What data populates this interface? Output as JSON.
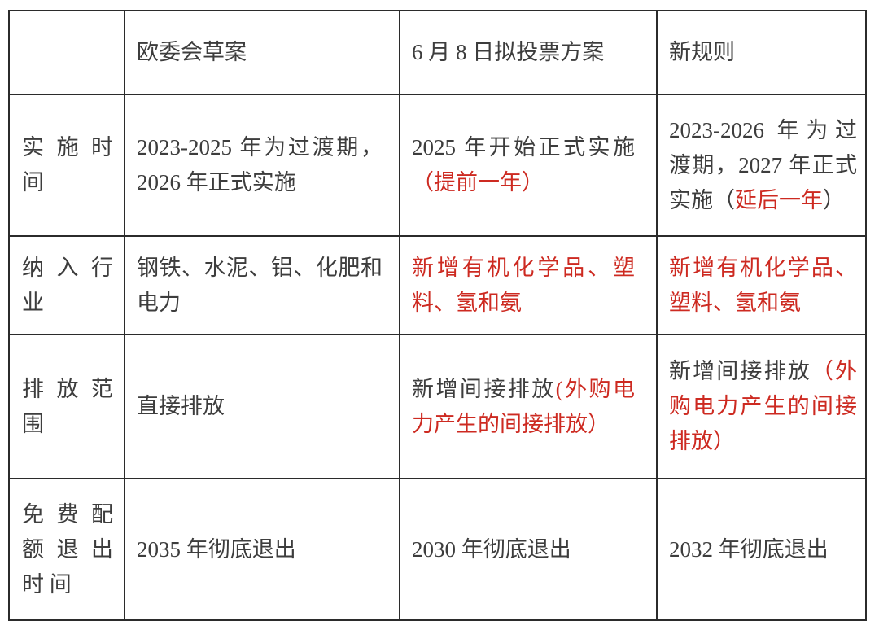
{
  "colors": {
    "text": "#3d3d3d",
    "red": "#cd2a21",
    "border": "#2b2b2b",
    "background": "#ffffff"
  },
  "table": {
    "header": {
      "empty": "",
      "col1": "欧委会草案",
      "col2": "6 月 8 日拟投票方案",
      "col3": "新规则"
    },
    "rows": [
      {
        "label": "实 施 时 间",
        "cells": [
          [
            {
              "t": "2023-2025 年为过渡期，2026 年正式实施"
            }
          ],
          [
            {
              "t": "2025 年开始正式实施"
            },
            {
              "t": "（提前一年）",
              "red": true
            }
          ],
          [
            {
              "t": "2023-2026 年为过渡期，2027 年正式实施（"
            },
            {
              "t": "延后一年",
              "red": true
            },
            {
              "t": "）"
            }
          ]
        ]
      },
      {
        "label": "纳 入 行 业",
        "cells": [
          [
            {
              "t": "钢铁、水泥、铝、化肥和电力"
            }
          ],
          [
            {
              "t": "新增有机化学品、塑料、氢和氨",
              "red": true
            }
          ],
          [
            {
              "t": "新增有机化学品、塑料、氢和氨",
              "red": true
            }
          ]
        ]
      },
      {
        "label": "排 放 范 围",
        "cells": [
          [
            {
              "t": "直接排放"
            }
          ],
          [
            {
              "t": "新增间接排放"
            },
            {
              "t": "(外购电力产生的间接排放）",
              "red": true
            }
          ],
          [
            {
              "t": "新增间接排放"
            },
            {
              "t": "（外购电力产生的间接排放）",
              "red": true
            }
          ]
        ]
      },
      {
        "label": "免 费 配 额 退 出 时 间",
        "cells": [
          [
            {
              "t": "2035 年彻底退出"
            }
          ],
          [
            {
              "t": "2030 年彻底退出"
            }
          ],
          [
            {
              "t": "2032 年彻底退出"
            }
          ]
        ]
      }
    ]
  }
}
